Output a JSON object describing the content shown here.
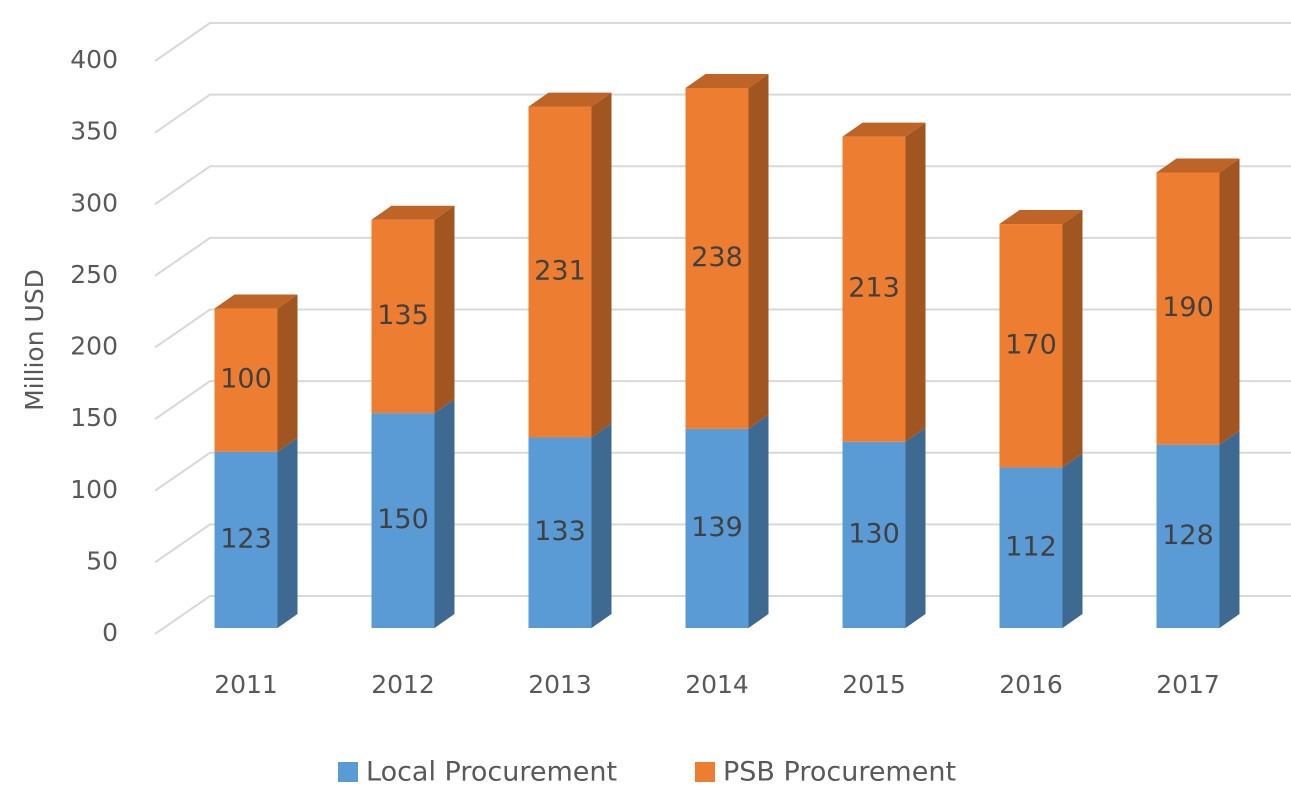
{
  "chart_data": {
    "type": "bar",
    "stacked": true,
    "y_label": "Million USD",
    "categories": [
      "2011",
      "2012",
      "2013",
      "2014",
      "2015",
      "2016",
      "2017"
    ],
    "series": [
      {
        "name": "Local Procurement",
        "color": "#5b9bd5",
        "values": [
          123,
          150,
          133,
          139,
          130,
          112,
          128
        ]
      },
      {
        "name": "PSB Procurement",
        "color": "#ed7d31",
        "values": [
          100,
          135,
          231,
          238,
          213,
          170,
          190
        ]
      }
    ],
    "ylim": [
      0,
      400
    ],
    "yticks": [
      0,
      50,
      100,
      150,
      200,
      250,
      300,
      350,
      400
    ],
    "grid": true,
    "legend": "bottom"
  }
}
